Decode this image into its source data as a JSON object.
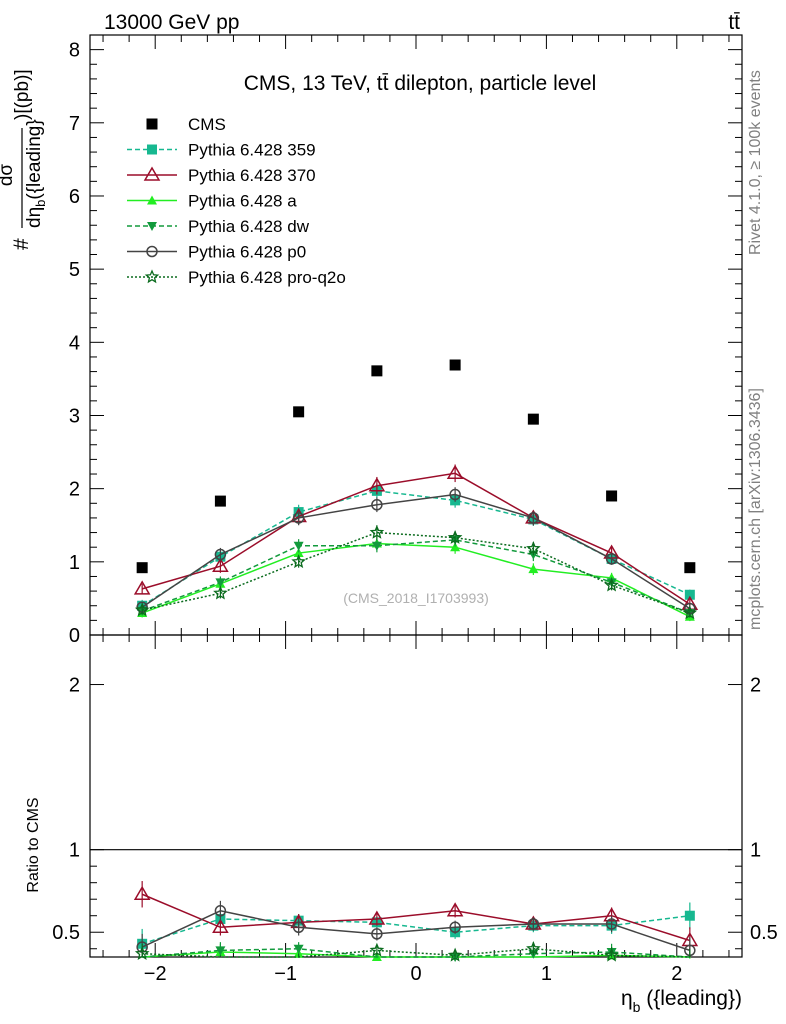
{
  "header": {
    "energy_label": "13000 GeV pp",
    "process_label": "tt̄",
    "rivet_label": "Rivet 4.1.0, ≥ 100k events",
    "site_label": "mcplots.cern.ch [arXiv:1306.3436]"
  },
  "chart_data": {
    "type": "scatter",
    "title": "CMS, 13 TeV, tt̄ dilepton, particle level",
    "watermark": "(CMS_2018_I1703993)",
    "xlabel": "η_b ({leading})",
    "ylabel": "#dσ / dη_b ({leading}) )[(pb)]",
    "ratio_ylabel": "Ratio to CMS",
    "xlim": [
      -2.5,
      2.5
    ],
    "ylim": [
      0,
      8.2
    ],
    "ratio_ylim": [
      0.35,
      2.3
    ],
    "x_ticks": [
      -2,
      -1,
      0,
      1,
      2
    ],
    "x_tick_labels": [
      "−2",
      "−1",
      "0",
      "1",
      "2"
    ],
    "y_ticks": [
      0,
      1,
      2,
      3,
      4,
      5,
      6,
      7,
      8
    ],
    "y_tick_labels": [
      "0",
      "1",
      "2",
      "3",
      "4",
      "5",
      "6",
      "7",
      "8"
    ],
    "ratio_ticks": [
      0.5,
      1,
      2
    ],
    "ratio_tick_labels": [
      "0.5",
      "1",
      "2"
    ],
    "x": [
      -2.1,
      -1.5,
      -0.9,
      -0.3,
      0.3,
      0.9,
      1.5,
      2.1
    ],
    "data": {
      "name": "CMS",
      "color": "#000000",
      "values": [
        0.92,
        1.83,
        3.05,
        3.61,
        3.69,
        2.95,
        1.9,
        0.92
      ]
    },
    "series": [
      {
        "name": "Pythia 6.428 359",
        "color": "#17b890",
        "marker": "square",
        "dash": "5,3",
        "values": [
          0.4,
          1.07,
          1.68,
          1.97,
          1.84,
          1.58,
          1.04,
          0.55
        ],
        "errors": [
          0.08,
          0.09,
          0.1,
          0.1,
          0.1,
          0.09,
          0.08,
          0.07
        ],
        "ratio": [
          0.43,
          0.58,
          0.57,
          0.56,
          0.5,
          0.54,
          0.54,
          0.6
        ],
        "ratio_err": [
          0.09,
          0.05,
          0.04,
          0.03,
          0.04,
          0.04,
          0.05,
          0.08
        ]
      },
      {
        "name": "Pythia 6.428 370",
        "color": "#9b0d2a",
        "marker": "triangle-open",
        "dash": "",
        "values": [
          0.63,
          0.94,
          1.62,
          2.04,
          2.21,
          1.6,
          1.12,
          0.42
        ],
        "errors": [
          0.07,
          0.09,
          0.11,
          0.12,
          0.12,
          0.1,
          0.08,
          0.07
        ],
        "ratio": [
          0.73,
          0.53,
          0.56,
          0.58,
          0.63,
          0.55,
          0.6,
          0.45
        ],
        "ratio_err": [
          0.08,
          0.05,
          0.05,
          0.04,
          0.04,
          0.04,
          0.05,
          0.08
        ]
      },
      {
        "name": "Pythia 6.428 a",
        "color": "#22ee22",
        "marker": "triangle",
        "dash": "",
        "values": [
          0.3,
          0.7,
          1.12,
          1.25,
          1.2,
          0.9,
          0.78,
          0.25
        ],
        "errors": [
          0.06,
          0.08,
          0.08,
          0.09,
          0.09,
          0.08,
          0.07,
          0.06
        ],
        "ratio": [
          0.33,
          0.38,
          0.37,
          0.35,
          0.33,
          0.31,
          0.36,
          0.27
        ],
        "ratio_err": [
          0.06,
          0.05,
          0.04,
          0.03,
          0.03,
          0.04,
          0.05,
          0.07
        ]
      },
      {
        "name": "Pythia 6.428 dw",
        "color": "#129a3c",
        "marker": "triangle-down",
        "dash": "5,3",
        "values": [
          0.33,
          0.72,
          1.22,
          1.22,
          1.3,
          1.1,
          0.72,
          0.3
        ],
        "errors": [
          0.06,
          0.08,
          0.09,
          0.09,
          0.09,
          0.09,
          0.07,
          0.06
        ],
        "ratio": [
          0.33,
          0.39,
          0.4,
          0.34,
          0.35,
          0.37,
          0.38,
          0.33
        ],
        "ratio_err": [
          0.06,
          0.05,
          0.04,
          0.03,
          0.03,
          0.04,
          0.05,
          0.07
        ]
      },
      {
        "name": "Pythia 6.428 p0",
        "color": "#444444",
        "marker": "circle-open",
        "dash": "",
        "values": [
          0.38,
          1.1,
          1.6,
          1.78,
          1.92,
          1.6,
          1.04,
          0.36
        ],
        "errors": [
          0.07,
          0.09,
          0.1,
          0.1,
          0.1,
          0.09,
          0.08,
          0.07
        ],
        "ratio": [
          0.41,
          0.63,
          0.53,
          0.49,
          0.53,
          0.55,
          0.55,
          0.39
        ],
        "ratio_err": [
          0.08,
          0.06,
          0.05,
          0.04,
          0.04,
          0.04,
          0.05,
          0.08
        ]
      },
      {
        "name": "Pythia 6.428 pro-q2o",
        "color": "#0b6b1e",
        "marker": "star",
        "dash": "2,2",
        "values": [
          0.34,
          0.57,
          1.0,
          1.4,
          1.33,
          1.18,
          0.68,
          0.3
        ],
        "errors": [
          0.06,
          0.07,
          0.08,
          0.1,
          0.09,
          0.09,
          0.07,
          0.06
        ],
        "ratio": [
          0.37,
          0.31,
          0.33,
          0.39,
          0.36,
          0.4,
          0.36,
          0.33
        ],
        "ratio_err": [
          0.06,
          0.05,
          0.04,
          0.03,
          0.03,
          0.04,
          0.05,
          0.07
        ]
      }
    ]
  }
}
